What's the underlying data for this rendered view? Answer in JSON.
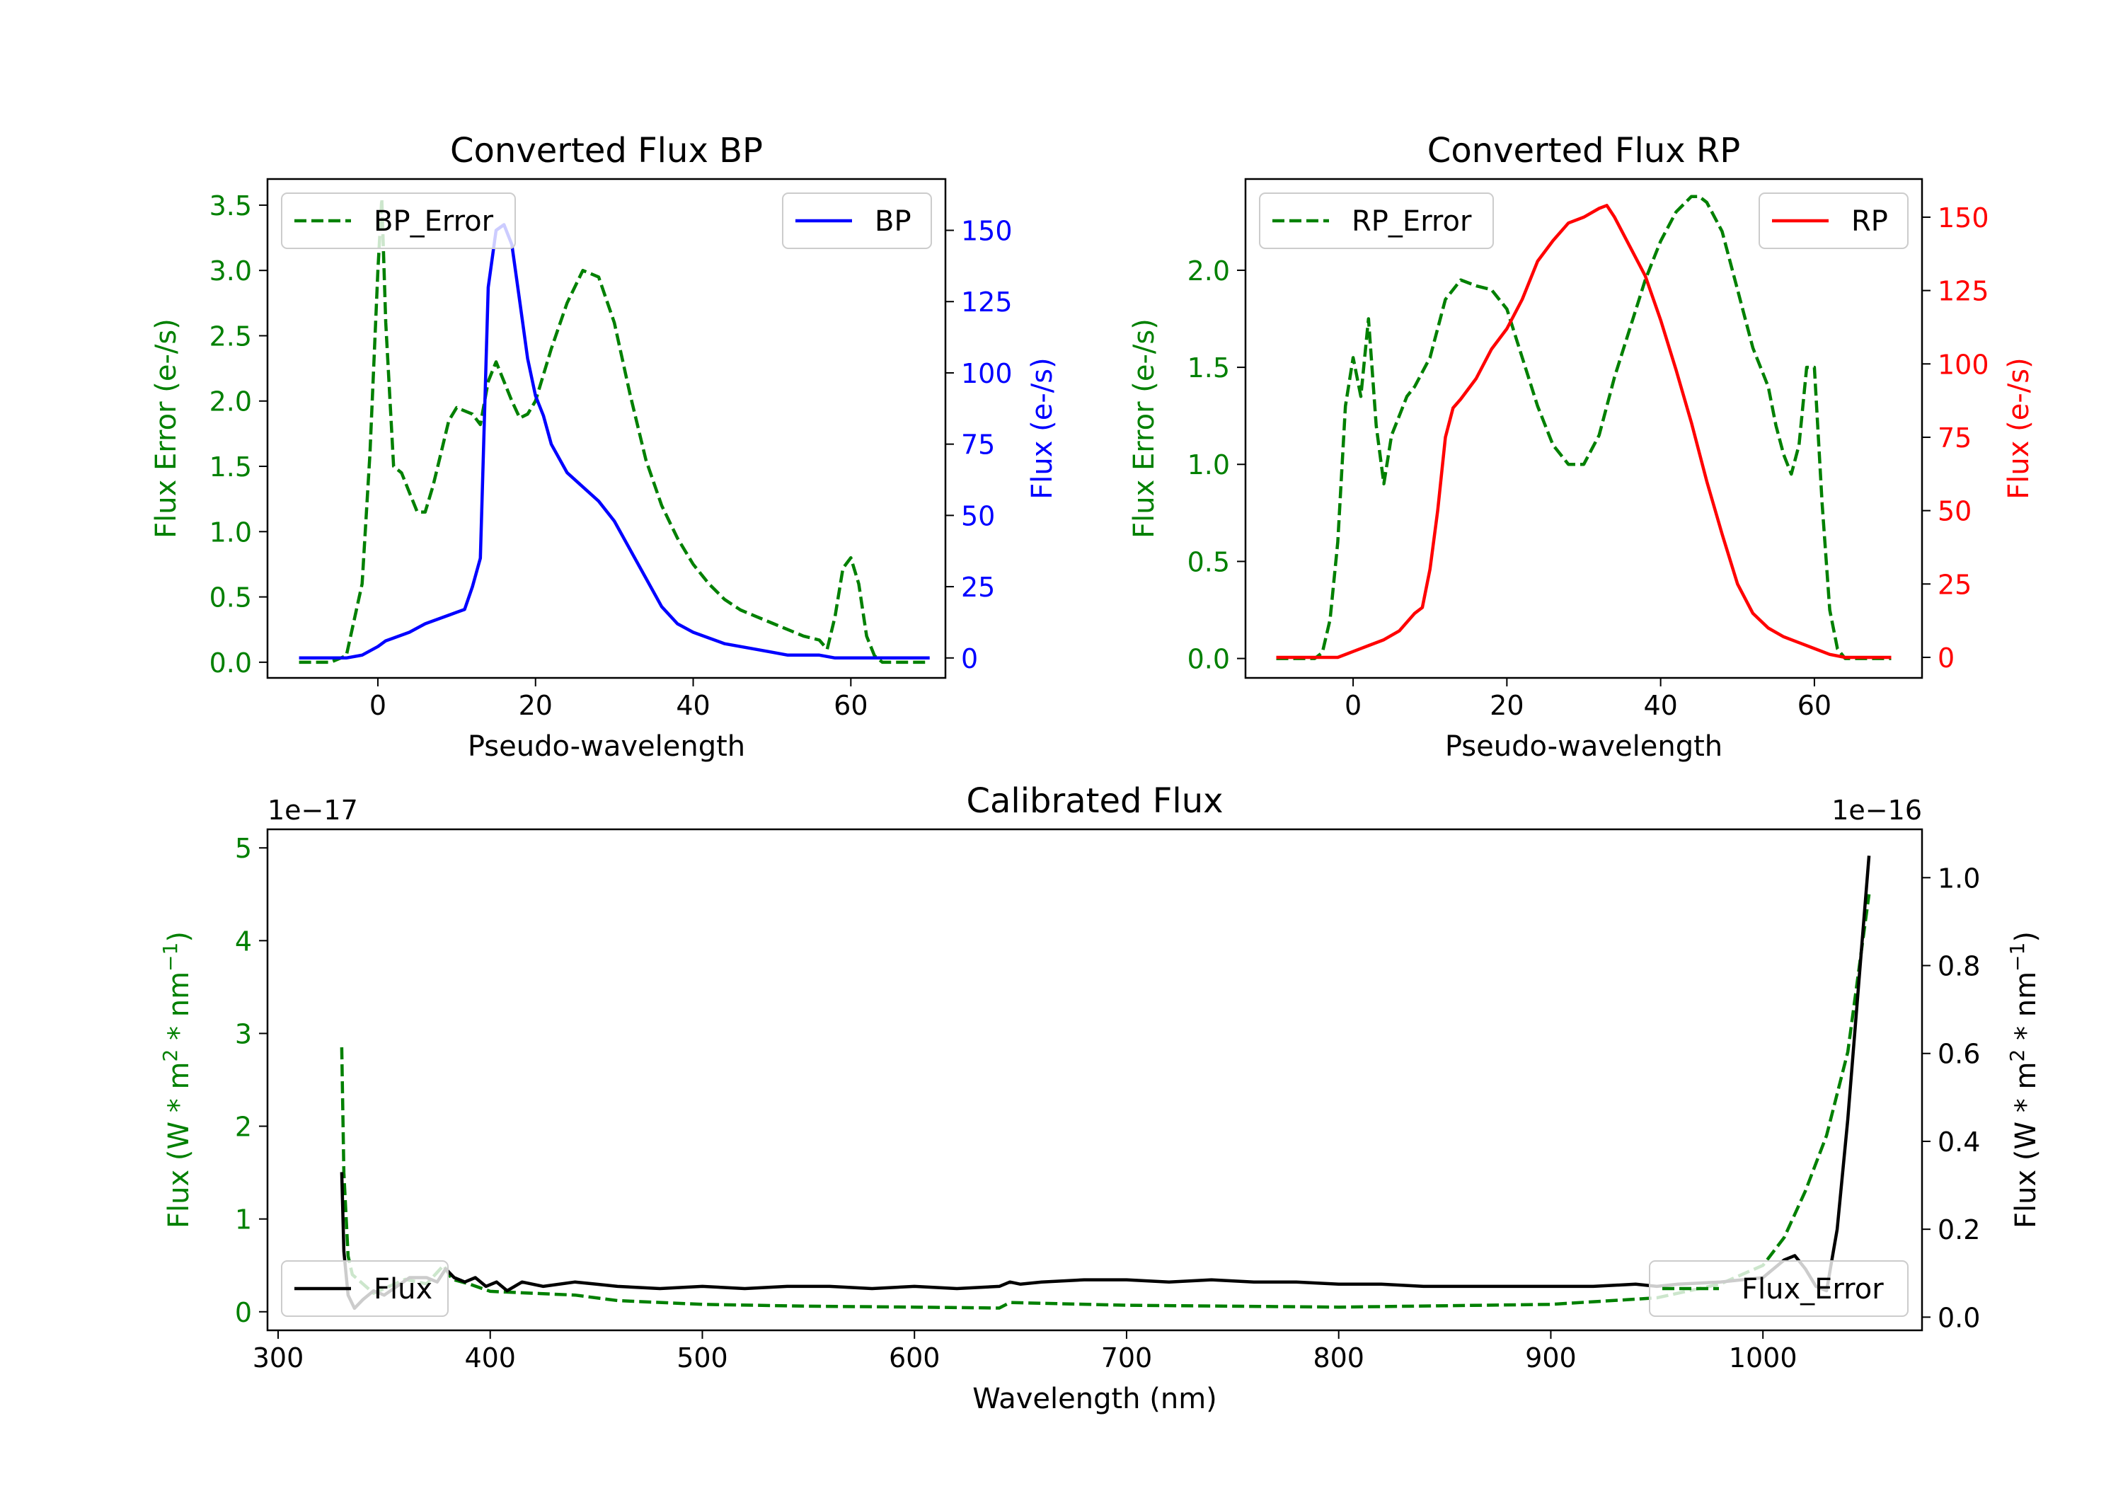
{
  "figure": {
    "background": "#ffffff"
  },
  "colors": {
    "bp": "#0000ff",
    "rp": "#ff0000",
    "error": "#008000",
    "flux": "#000000"
  },
  "chart_data": [
    {
      "id": "bp",
      "type": "line",
      "title": "Converted Flux BP",
      "xlabel": "Pseudo-wavelength",
      "ylabel_left": "Flux Error (e-/s)",
      "ylabel_right": "Flux (e-/s)",
      "xlim": [
        -14,
        72
      ],
      "xticks": [
        0,
        20,
        40,
        60
      ],
      "ylim_left": [
        -0.12,
        3.7
      ],
      "yticks_left": [
        0.0,
        0.5,
        1.0,
        1.5,
        2.0,
        2.5,
        3.0,
        3.5
      ],
      "ylim_right": [
        -7,
        168
      ],
      "yticks_right": [
        0,
        25,
        50,
        75,
        100,
        125,
        150
      ],
      "left_tick_color": "#008000",
      "right_tick_color": "#0000ff",
      "left_label_color": "#008000",
      "right_label_color": "#0000ff",
      "series": [
        {
          "name": "BP_Error",
          "axis": "left",
          "color": "#008000",
          "dash": true,
          "x": [
            -10,
            -6,
            -4,
            -2,
            -1,
            0,
            0.5,
            1,
            2,
            3,
            4,
            5,
            6,
            7,
            8,
            9,
            10,
            12,
            13,
            14,
            15,
            16,
            17,
            18,
            19,
            20,
            22,
            24,
            26,
            28,
            30,
            32,
            34,
            36,
            38,
            40,
            42,
            44,
            46,
            48,
            50,
            52,
            54,
            56,
            57,
            58,
            59,
            60,
            61,
            62,
            63,
            64,
            66,
            70
          ],
          "y": [
            0.0,
            0.0,
            0.05,
            0.6,
            1.6,
            3.0,
            3.55,
            2.6,
            1.5,
            1.45,
            1.3,
            1.15,
            1.15,
            1.35,
            1.6,
            1.85,
            1.95,
            1.9,
            1.82,
            2.15,
            2.3,
            2.15,
            2.0,
            1.87,
            1.9,
            2.0,
            2.4,
            2.75,
            3.0,
            2.95,
            2.6,
            2.05,
            1.55,
            1.2,
            0.95,
            0.75,
            0.6,
            0.48,
            0.4,
            0.35,
            0.3,
            0.25,
            0.2,
            0.17,
            0.1,
            0.35,
            0.72,
            0.8,
            0.6,
            0.2,
            0.05,
            0.0,
            0.0,
            0.0
          ]
        },
        {
          "name": "BP",
          "axis": "right",
          "color": "#0000ff",
          "dash": false,
          "x": [
            -10,
            -4,
            -2,
            0,
            1,
            2,
            4,
            6,
            8,
            10,
            11,
            12,
            13,
            14,
            15,
            16,
            17,
            18,
            19,
            20,
            21,
            22,
            24,
            26,
            28,
            30,
            32,
            34,
            36,
            38,
            40,
            42,
            44,
            46,
            48,
            50,
            52,
            54,
            56,
            58,
            60,
            62,
            66,
            70
          ],
          "y": [
            0,
            0,
            1,
            4,
            6,
            7,
            9,
            12,
            14,
            16,
            17,
            25,
            35,
            130,
            150,
            152,
            145,
            125,
            105,
            92,
            85,
            75,
            65,
            60,
            55,
            48,
            38,
            28,
            18,
            12,
            9,
            7,
            5,
            4,
            3,
            2,
            1,
            1,
            1,
            0,
            0,
            0,
            0,
            0
          ]
        }
      ],
      "legend": [
        {
          "label": "BP_Error",
          "position": "upper-left"
        },
        {
          "label": "BP",
          "position": "upper-right"
        }
      ]
    },
    {
      "id": "rp",
      "type": "line",
      "title": "Converted Flux RP",
      "xlabel": "Pseudo-wavelength",
      "ylabel_left": "Flux Error (e-/s)",
      "ylabel_right": "Flux (e-/s)",
      "xlim": [
        -14,
        74
      ],
      "xticks": [
        0,
        20,
        40,
        60
      ],
      "ylim_left": [
        -0.1,
        2.47
      ],
      "yticks_left": [
        0.0,
        0.5,
        1.0,
        1.5,
        2.0
      ],
      "ylim_right": [
        -7,
        163
      ],
      "yticks_right": [
        0,
        25,
        50,
        75,
        100,
        125,
        150
      ],
      "left_tick_color": "#008000",
      "right_tick_color": "#ff0000",
      "left_label_color": "#008000",
      "right_label_color": "#ff0000",
      "series": [
        {
          "name": "RP_Error",
          "axis": "left",
          "color": "#008000",
          "dash": true,
          "x": [
            -10,
            -5,
            -4,
            -3,
            -2,
            -1,
            0,
            1,
            2,
            3,
            4,
            5,
            6,
            7,
            8,
            10,
            12,
            14,
            16,
            18,
            20,
            22,
            24,
            26,
            28,
            30,
            32,
            34,
            36,
            38,
            40,
            42,
            44,
            45,
            46,
            48,
            50,
            52,
            54,
            55,
            56,
            57,
            58,
            59,
            60,
            61,
            62,
            63,
            64,
            70
          ],
          "y": [
            0.0,
            0.0,
            0.03,
            0.2,
            0.6,
            1.3,
            1.55,
            1.35,
            1.75,
            1.2,
            0.9,
            1.15,
            1.25,
            1.35,
            1.4,
            1.55,
            1.85,
            1.95,
            1.92,
            1.9,
            1.8,
            1.55,
            1.3,
            1.1,
            1.0,
            1.0,
            1.15,
            1.45,
            1.7,
            1.95,
            2.15,
            2.3,
            2.38,
            2.38,
            2.35,
            2.2,
            1.9,
            1.6,
            1.4,
            1.2,
            1.05,
            0.95,
            1.1,
            1.5,
            1.5,
            0.8,
            0.25,
            0.05,
            0.0,
            0.0
          ]
        },
        {
          "name": "RP",
          "axis": "right",
          "color": "#ff0000",
          "dash": false,
          "x": [
            -10,
            -2,
            0,
            2,
            4,
            6,
            8,
            9,
            10,
            11,
            12,
            13,
            14,
            16,
            18,
            20,
            22,
            24,
            26,
            28,
            30,
            32,
            33,
            34,
            36,
            38,
            40,
            42,
            44,
            46,
            48,
            50,
            52,
            54,
            56,
            58,
            60,
            62,
            64,
            70
          ],
          "y": [
            0,
            0,
            2,
            4,
            6,
            9,
            15,
            17,
            30,
            50,
            75,
            85,
            88,
            95,
            105,
            112,
            122,
            135,
            142,
            148,
            150,
            153,
            154,
            150,
            140,
            130,
            115,
            98,
            80,
            60,
            42,
            25,
            15,
            10,
            7,
            5,
            3,
            1,
            0,
            0
          ]
        }
      ],
      "legend": [
        {
          "label": "RP_Error",
          "position": "upper-left"
        },
        {
          "label": "RP",
          "position": "upper-right"
        }
      ]
    },
    {
      "id": "cal",
      "type": "line",
      "title": "Calibrated Flux",
      "xlabel": "Wavelength (nm)",
      "ylabel_left": "Flux (W * m^2 * nm^-1)",
      "ylabel_right": "Flux (W * m^2 * nm^-1)",
      "ylabel_base": "Flux (W * m",
      "ylabel_mid": " * nm",
      "ylabel_end": ")",
      "sup_two": "2",
      "sup_minus_one": "−1",
      "offset_left": "1e−17",
      "offset_right": "1e−16",
      "xlim": [
        295,
        1075
      ],
      "xticks": [
        300,
        400,
        500,
        600,
        700,
        800,
        900,
        1000
      ],
      "ylim_left": [
        -0.2,
        5.2
      ],
      "yticks_left": [
        0,
        1,
        2,
        3,
        4,
        5
      ],
      "ylim_right": [
        -0.03,
        1.11
      ],
      "yticks_right": [
        "0.0",
        "0.2",
        "0.4",
        "0.6",
        "0.8",
        "1.0"
      ],
      "left_tick_color": "#008000",
      "right_tick_color": "#000000",
      "left_label_color": "#008000",
      "right_label_color": "#000000",
      "series": [
        {
          "name": "Flux_Error",
          "axis": "left",
          "color": "#008000",
          "dash": true,
          "x": [
            330,
            331,
            333,
            335,
            340,
            345,
            350,
            360,
            370,
            378,
            382,
            390,
            400,
            420,
            440,
            460,
            500,
            550,
            600,
            640,
            645,
            700,
            800,
            900,
            950,
            980,
            1000,
            1010,
            1020,
            1030,
            1040,
            1050
          ],
          "y": [
            2.85,
            1.5,
            0.6,
            0.4,
            0.3,
            0.2,
            0.25,
            0.35,
            0.3,
            0.5,
            0.35,
            0.3,
            0.22,
            0.2,
            0.18,
            0.12,
            0.08,
            0.06,
            0.05,
            0.04,
            0.1,
            0.07,
            0.05,
            0.08,
            0.15,
            0.3,
            0.5,
            0.8,
            1.3,
            1.9,
            2.8,
            4.5
          ]
        },
        {
          "name": "Flux",
          "axis": "right",
          "color": "#000000",
          "dash": false,
          "x": [
            330,
            331,
            333,
            336,
            340,
            345,
            350,
            356,
            362,
            370,
            375,
            379,
            383,
            388,
            393,
            398,
            403,
            408,
            415,
            425,
            440,
            450,
            460,
            480,
            500,
            520,
            540,
            560,
            580,
            600,
            620,
            640,
            645,
            650,
            660,
            680,
            700,
            720,
            740,
            760,
            780,
            800,
            820,
            840,
            860,
            880,
            900,
            920,
            940,
            950,
            960,
            980,
            1000,
            1010,
            1015,
            1020,
            1025,
            1030,
            1035,
            1040,
            1045,
            1050
          ],
          "y": [
            0.33,
            0.15,
            0.05,
            0.02,
            0.04,
            0.06,
            0.05,
            0.07,
            0.09,
            0.09,
            0.08,
            0.11,
            0.09,
            0.08,
            0.09,
            0.07,
            0.08,
            0.06,
            0.08,
            0.07,
            0.08,
            0.075,
            0.07,
            0.065,
            0.07,
            0.065,
            0.07,
            0.07,
            0.065,
            0.07,
            0.065,
            0.07,
            0.08,
            0.075,
            0.08,
            0.085,
            0.085,
            0.08,
            0.085,
            0.08,
            0.08,
            0.075,
            0.075,
            0.07,
            0.07,
            0.07,
            0.07,
            0.07,
            0.075,
            0.07,
            0.075,
            0.08,
            0.09,
            0.13,
            0.14,
            0.11,
            0.07,
            0.06,
            0.2,
            0.45,
            0.75,
            1.05
          ]
        }
      ],
      "legend": [
        {
          "label": "Flux",
          "position": "lower-left"
        },
        {
          "label": "Flux_Error",
          "position": "lower-right"
        }
      ]
    }
  ]
}
